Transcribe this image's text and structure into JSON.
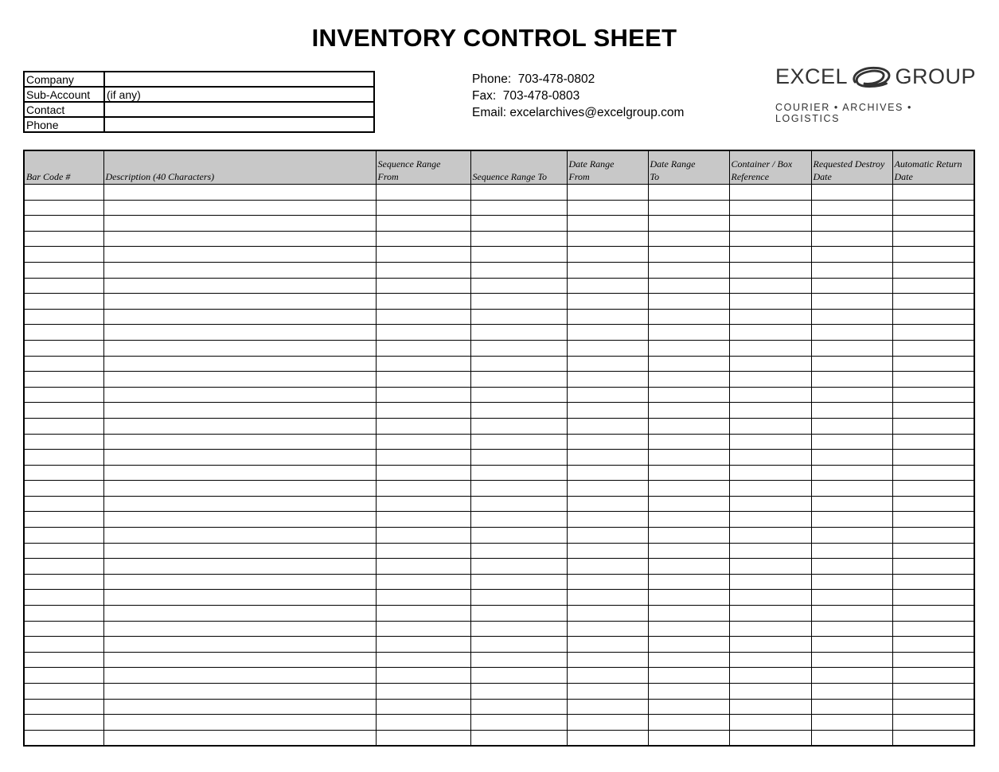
{
  "header": {
    "title": "INVENTORY CONTROL SHEET"
  },
  "info": {
    "rows": [
      [
        "Company"
      ],
      [
        "Sub-Account",
        "(if any)"
      ],
      [
        "Contact"
      ],
      [
        "Phone"
      ]
    ]
  },
  "contact": {
    "lines": [
      "Phone:  703-478-0802",
      "Fax:  703-478-0803",
      "Email: excelarchives@excelgroup.com"
    ]
  },
  "logo": {
    "left": "EXCEL",
    "right": "GROUP",
    "tagline": "COURIER • ARCHIVES • LOGISTICS"
  },
  "table": {
    "headers": [
      [
        "Bar Code #"
      ],
      [
        "Description (40 Characters)"
      ],
      [
        "Sequence Range",
        "From"
      ],
      [
        "Sequence Range To"
      ],
      [
        "Date Range",
        "From"
      ],
      [
        "Date Range",
        "To"
      ],
      [
        "Container / Box",
        "Reference"
      ],
      [
        "Requested Destroy",
        "Date"
      ],
      [
        "Automatic Return",
        "Date"
      ]
    ]
  }
}
